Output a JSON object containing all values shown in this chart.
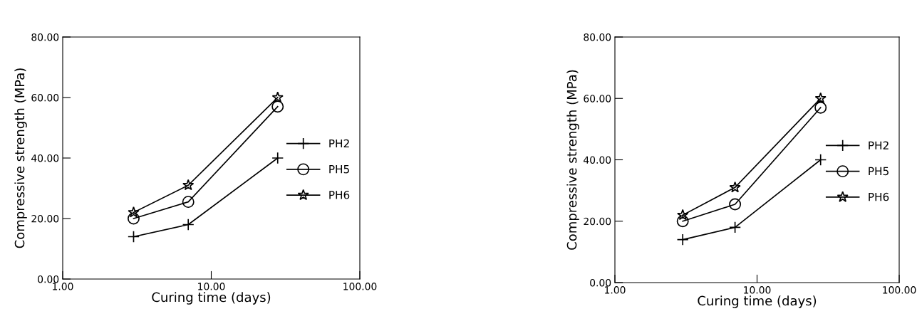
{
  "chart_data": [
    {
      "type": "line",
      "xlabel": "Curing time (days)",
      "ylabel": "Compressive strength (MPa)",
      "log": "x",
      "x": [
        3,
        7,
        28
      ],
      "xlim": [
        1,
        100
      ],
      "xticks": [
        {
          "value": 1,
          "label": "1.00"
        },
        {
          "value": 10,
          "label": "10.00"
        },
        {
          "value": 100,
          "label": "100.00"
        }
      ],
      "ylim": [
        0,
        80
      ],
      "yticks": [
        {
          "value": 0,
          "label": "0.00"
        },
        {
          "value": 20,
          "label": "20.00"
        },
        {
          "value": 40,
          "label": "40.00"
        },
        {
          "value": 60,
          "label": "60.00"
        },
        {
          "value": 80,
          "label": "80.00"
        }
      ],
      "grid": false,
      "legend": "right",
      "series": [
        {
          "name": "PH2",
          "color": "#000000",
          "marker": "cross",
          "values": [
            14,
            18,
            40
          ]
        },
        {
          "name": "PH5",
          "color": "#000000",
          "marker": "circle",
          "values": [
            20,
            25.5,
            57
          ]
        },
        {
          "name": "PH6",
          "color": "#000000",
          "marker": "star",
          "values": [
            22,
            31,
            60
          ]
        }
      ]
    },
    {
      "type": "line",
      "xlabel": "Curing time (days)",
      "ylabel": "Compressive strength (MPa)",
      "log": "x",
      "x": [
        3,
        7,
        28
      ],
      "xlim": [
        1,
        100
      ],
      "xticks": [
        {
          "value": 1,
          "label": "1.00"
        },
        {
          "value": 10,
          "label": "10.00"
        },
        {
          "value": 100,
          "label": "100.00"
        }
      ],
      "ylim": [
        0,
        80
      ],
      "yticks": [
        {
          "value": 0,
          "label": "0.00"
        },
        {
          "value": 20,
          "label": "20.00"
        },
        {
          "value": 40,
          "label": "40.00"
        },
        {
          "value": 60,
          "label": "60.00"
        },
        {
          "value": 80,
          "label": "80.00"
        }
      ],
      "grid": false,
      "legend": "right",
      "series": [
        {
          "name": "PH2",
          "color": "#000000",
          "marker": "cross",
          "values": [
            14,
            18,
            40
          ]
        },
        {
          "name": "PH5",
          "color": "#000000",
          "marker": "circle",
          "values": [
            20,
            25.5,
            57
          ]
        },
        {
          "name": "PH6",
          "color": "#000000",
          "marker": "star",
          "values": [
            22,
            31,
            60
          ]
        }
      ]
    }
  ]
}
